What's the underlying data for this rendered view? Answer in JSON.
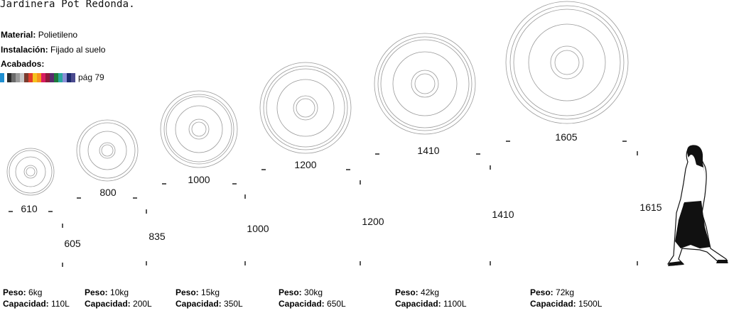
{
  "header": {
    "title": "Jardinera Pot Redonda.",
    "material_label": "Material:",
    "material_value": "Polietileno",
    "installation_label": "Instalación:",
    "installation_value": "Fijado al suelo",
    "finishes_label": "Acabados:",
    "finishes_page": "pág 79",
    "finish_colors": [
      "#1f8fd1",
      "#ffffff",
      "#2b2b2b",
      "#6b6b6b",
      "#9b9b9b",
      "#c7c7c7",
      "#7a3b2e",
      "#e23c2c",
      "#f4c21f",
      "#f7941d",
      "#d81b60",
      "#8e1b3a",
      "#5a2a6e",
      "#1e7a3c",
      "#2aa8a0",
      "#8a8fd6",
      "#1c2a6e",
      "#4b4b8f"
    ]
  },
  "pots": [
    {
      "diameter": "610",
      "height": "605",
      "weight_label": "Peso:",
      "weight": "6kg",
      "capacity_label": "Capacidad:",
      "capacity": "110L"
    },
    {
      "diameter": "800",
      "height": "835",
      "weight_label": "Peso:",
      "weight": "10kg",
      "capacity_label": "Capacidad:",
      "capacity": "200L"
    },
    {
      "diameter": "1000",
      "height": "1000",
      "weight_label": "Peso:",
      "weight": "15kg",
      "capacity_label": "Capacidad:",
      "capacity": "350L"
    },
    {
      "diameter": "1200",
      "height": "1200",
      "weight_label": "Peso:",
      "weight": "30kg",
      "capacity_label": "Capacidad:",
      "capacity": "650L"
    },
    {
      "diameter": "1410",
      "height": "1410",
      "weight_label": "Peso:",
      "weight": "42kg",
      "capacity_label": "Capacidad:",
      "capacity": "1100L"
    },
    {
      "diameter": "1605",
      "height": "",
      "weight_label": "Peso:",
      "weight": "72kg",
      "capacity_label": "Capacidad:",
      "capacity": "1500L"
    }
  ],
  "person_height": "1615"
}
